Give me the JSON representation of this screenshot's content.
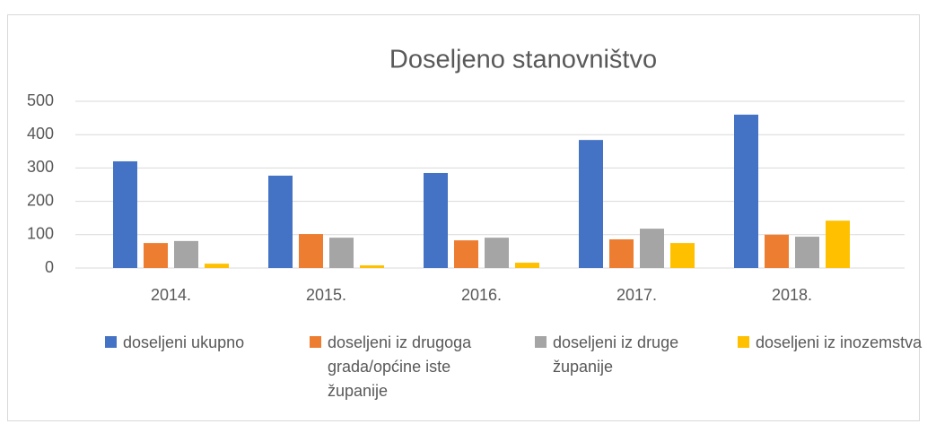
{
  "chart_data": {
    "type": "bar",
    "title": "Doseljeno stanovništvo",
    "categories": [
      "2014.",
      "2015.",
      "2016.",
      "2017.",
      "2018."
    ],
    "series": [
      {
        "name": "doseljeni ukupno",
        "color": "#4472c4",
        "values": [
          320,
          277,
          285,
          384,
          460
        ]
      },
      {
        "name": "doseljeni iz drugoga grada/općine iste županije",
        "color": "#ed7d31",
        "values": [
          75,
          102,
          83,
          86,
          100
        ]
      },
      {
        "name": "doseljeni iz druge županije",
        "color": "#a5a5a5",
        "values": [
          81,
          91,
          91,
          118,
          94
        ]
      },
      {
        "name": "doseljeni iz inozemstva",
        "color": "#ffc000",
        "values": [
          13,
          8,
          16,
          75,
          142
        ]
      }
    ],
    "ylim": [
      0,
      500
    ],
    "yticks": [
      0,
      100,
      200,
      300,
      400,
      500
    ],
    "grid": true,
    "legend": "bottom"
  }
}
